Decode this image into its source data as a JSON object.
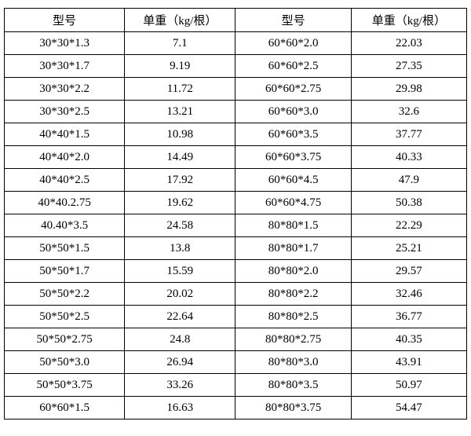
{
  "table": {
    "type": "table",
    "background_color": "#ffffff",
    "border_color": "#000000",
    "text_color": "#000000",
    "font_family": "SimSun",
    "cell_fontsize": 15,
    "column_widths_pct": [
      26,
      24,
      25,
      25
    ],
    "columns": [
      "型号",
      "单重（kg/根）",
      "型号",
      "单重（kg/根）"
    ],
    "rows": [
      [
        "30*30*1.3",
        "7.1",
        "60*60*2.0",
        "22.03"
      ],
      [
        "30*30*1.7",
        "9.19",
        "60*60*2.5",
        "27.35"
      ],
      [
        "30*30*2.2",
        "11.72",
        "60*60*2.75",
        "29.98"
      ],
      [
        "30*30*2.5",
        "13.21",
        "60*60*3.0",
        "32.6"
      ],
      [
        "40*40*1.5",
        "10.98",
        "60*60*3.5",
        "37.77"
      ],
      [
        "40*40*2.0",
        "14.49",
        "60*60*3.75",
        "40.33"
      ],
      [
        "40*40*2.5",
        "17.92",
        "60*60*4.5",
        "47.9"
      ],
      [
        "40*40.2.75",
        "19.62",
        "60*60*4.75",
        "50.38"
      ],
      [
        "40.40*3.5",
        "24.58",
        "80*80*1.5",
        "22.29"
      ],
      [
        "50*50*1.5",
        "13.8",
        "80*80*1.7",
        "25.21"
      ],
      [
        "50*50*1.7",
        "15.59",
        "80*80*2.0",
        "29.57"
      ],
      [
        "50*50*2.2",
        "20.02",
        "80*80*2.2",
        "32.46"
      ],
      [
        "50*50*2.5",
        "22.64",
        "80*80*2.5",
        "36.77"
      ],
      [
        "50*50*2.75",
        "24.8",
        "80*80*2.75",
        "40.35"
      ],
      [
        "50*50*3.0",
        "26.94",
        "80*80*3.0",
        "43.91"
      ],
      [
        "50*50*3.75",
        "33.26",
        "80*80*3.5",
        "50.97"
      ],
      [
        "60*60*1.5",
        "16.63",
        "80*80*3.75",
        "54.47"
      ]
    ]
  }
}
